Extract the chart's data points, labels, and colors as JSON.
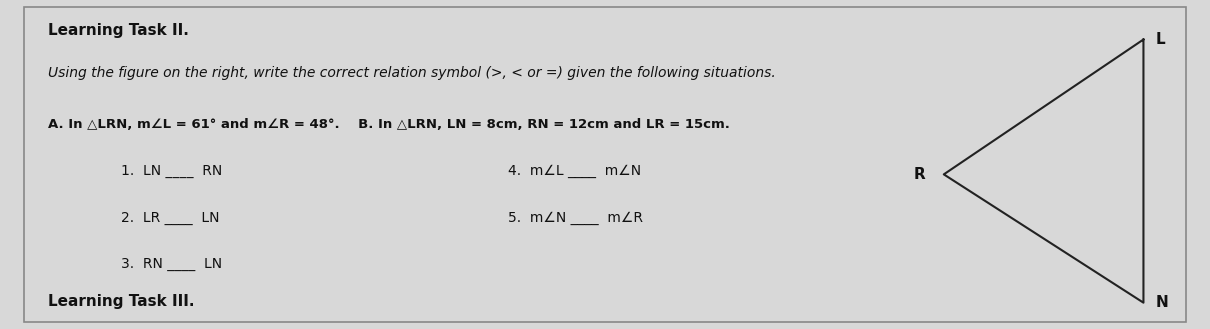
{
  "bg_color": "#d8d8d8",
  "title": "Learning Task II.",
  "footer": "Learning Task III.",
  "instruction": "Using the figure on the right, write the correct relation symbol (>, < or =) given the following situations.",
  "condition_A": "A. In △LRN, m∠L = 61° and m∠R = 48°.",
  "condition_B": "B. In △LRN, LN = 8cm, RN = 12cm and LR = 15cm.",
  "items_left": [
    "1.  LN ____  RN",
    "2.  LR ____  LN",
    "3.  RN ____  LN"
  ],
  "items_right": [
    "4.  m∠L ____  m∠N",
    "5.  m∠N ____  m∠R"
  ],
  "triangle": {
    "L": [
      1.0,
      0.82
    ],
    "R": [
      0.62,
      0.38
    ],
    "N": [
      1.0,
      0.05
    ],
    "label_L": "L",
    "label_R": "R",
    "label_N": "N"
  },
  "font_title": 11,
  "font_instruction": 10,
  "font_conditions": 9.5,
  "font_items": 10,
  "font_footer": 11,
  "text_color": "#111111",
  "border_color": "#888888"
}
